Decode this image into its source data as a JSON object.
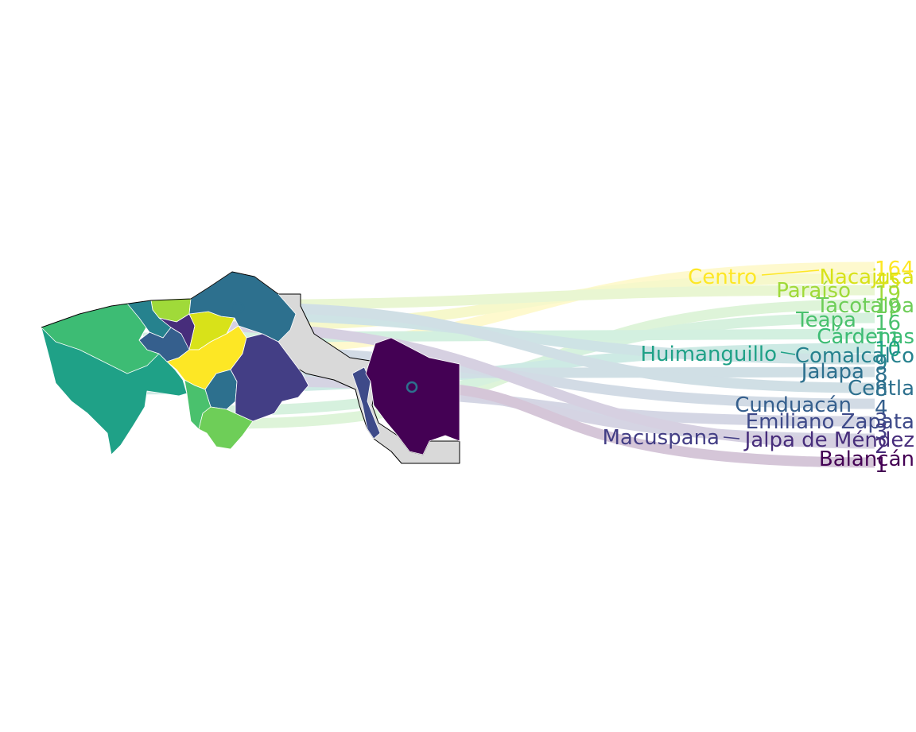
{
  "municipalities": [
    {
      "name": "Centro",
      "value": "164",
      "color": "#FDE725"
    },
    {
      "name": "Nacajuca",
      "value": "45",
      "color": "#D8E219"
    },
    {
      "name": "Paraíso",
      "value": "19",
      "color": "#A0DA39"
    },
    {
      "name": "Tacotalpa",
      "value": "19",
      "color": "#6ECE58"
    },
    {
      "name": "Teapa",
      "value": "16",
      "color": "#4AC16D"
    },
    {
      "name": "Cárdenas",
      "value": "11",
      "color": "#3DBC74"
    },
    {
      "name": "Huimanguillo",
      "value": "10",
      "color": "#1FA187"
    },
    {
      "name": "Comalcalco",
      "value": "9",
      "color": "#26828E"
    },
    {
      "name": "Jalapa",
      "value": "8",
      "color": "#2D708E"
    },
    {
      "name": "Centla",
      "value": "8",
      "color": "#2D708E"
    },
    {
      "name": "Cunduacán",
      "value": "4",
      "color": "#355F8D"
    },
    {
      "name": "Emiliano Zapata",
      "value": "3",
      "color": "#3E4A89"
    },
    {
      "name": "Macuspana",
      "value": "3",
      "color": "#433E85"
    },
    {
      "name": "Jalpa de Méndez",
      "value": "2",
      "color": "#472D7B"
    },
    {
      "name": "Balancán",
      "value": "1",
      "color": "#440154"
    }
  ],
  "palette": {
    "land_gray": "#D9D9D9",
    "border_dark": "#000000",
    "border_light": "#FFFFFF"
  }
}
